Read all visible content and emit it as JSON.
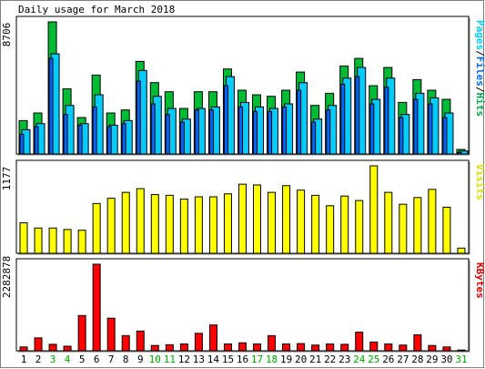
{
  "chart_data": [
    {
      "type": "bar",
      "title": "Daily usage for March 2018",
      "max_label": "8706",
      "ylim": [
        0,
        8706
      ],
      "legend": [
        {
          "text": "Pages",
          "color": "#00ccff"
        },
        {
          "text": "Files",
          "color": "#0066ff"
        },
        {
          "text": "Hits",
          "color": "#00aa44"
        }
      ],
      "categories": [
        "1",
        "2",
        "3",
        "4",
        "5",
        "6",
        "7",
        "8",
        "9",
        "10",
        "11",
        "12",
        "13",
        "14",
        "15",
        "16",
        "17",
        "18",
        "19",
        "20",
        "21",
        "22",
        "23",
        "24",
        "25",
        "26",
        "27",
        "28",
        "29",
        "30",
        "31"
      ],
      "weekend_days": [
        "3",
        "4",
        "10",
        "11",
        "17",
        "18",
        "24",
        "25",
        "31"
      ],
      "series": [
        {
          "name": "Hits",
          "color": "#00bb33",
          "values": [
            2200,
            2700,
            8706,
            4300,
            2400,
            5200,
            2700,
            2900,
            6100,
            4700,
            4100,
            3000,
            4100,
            4100,
            5600,
            4200,
            3900,
            3800,
            4200,
            5400,
            3200,
            4000,
            5800,
            6300,
            4500,
            5700,
            3400,
            4900,
            4200,
            3600,
            300
          ]
        },
        {
          "name": "Files",
          "color": "#00ccff",
          "values": [
            1600,
            2000,
            6600,
            3200,
            2000,
            3900,
            1900,
            2200,
            5500,
            3800,
            3000,
            2300,
            3000,
            3100,
            5100,
            3400,
            3100,
            3000,
            3300,
            4700,
            2300,
            3200,
            5000,
            5700,
            3600,
            5000,
            2600,
            4000,
            3700,
            2700,
            200
          ]
        },
        {
          "name": "Pages",
          "color": "#0066ff",
          "values": [
            1300,
            1800,
            6300,
            2600,
            1900,
            3100,
            1800,
            2000,
            4800,
            3300,
            2600,
            2100,
            2900,
            2900,
            4500,
            3100,
            2800,
            2800,
            3100,
            4200,
            2100,
            2900,
            4600,
            5100,
            3300,
            4400,
            2400,
            3600,
            3300,
            2400,
            100
          ]
        }
      ]
    },
    {
      "type": "bar",
      "title": "Visits",
      "max_label": "1177",
      "ylim": [
        0,
        1177
      ],
      "categories": [
        "1",
        "2",
        "3",
        "4",
        "5",
        "6",
        "7",
        "8",
        "9",
        "10",
        "11",
        "12",
        "13",
        "14",
        "15",
        "16",
        "17",
        "18",
        "19",
        "20",
        "21",
        "22",
        "23",
        "24",
        "25",
        "26",
        "27",
        "28",
        "29",
        "30",
        "31"
      ],
      "series": [
        {
          "name": "Visits",
          "color": "#ffff00",
          "values": [
            410,
            340,
            340,
            320,
            310,
            670,
            740,
            820,
            870,
            790,
            780,
            730,
            760,
            760,
            800,
            930,
            920,
            820,
            910,
            850,
            780,
            640,
            770,
            710,
            1177,
            820,
            660,
            750,
            860,
            620,
            70
          ]
        }
      ]
    },
    {
      "type": "bar",
      "title": "KBytes",
      "max_label": "2282878",
      "ylim": [
        0,
        2282878
      ],
      "categories": [
        "1",
        "2",
        "3",
        "4",
        "5",
        "6",
        "7",
        "8",
        "9",
        "10",
        "11",
        "12",
        "13",
        "14",
        "15",
        "16",
        "17",
        "18",
        "19",
        "20",
        "21",
        "22",
        "23",
        "24",
        "25",
        "26",
        "27",
        "28",
        "29",
        "30",
        "31"
      ],
      "series": [
        {
          "name": "KBytes",
          "color": "#ff0000",
          "values": [
            100000,
            340000,
            170000,
            120000,
            930000,
            2282878,
            860000,
            400000,
            520000,
            140000,
            160000,
            180000,
            460000,
            680000,
            180000,
            210000,
            180000,
            400000,
            180000,
            190000,
            150000,
            180000,
            170000,
            490000,
            230000,
            180000,
            150000,
            420000,
            140000,
            100000,
            20000
          ]
        }
      ]
    }
  ]
}
